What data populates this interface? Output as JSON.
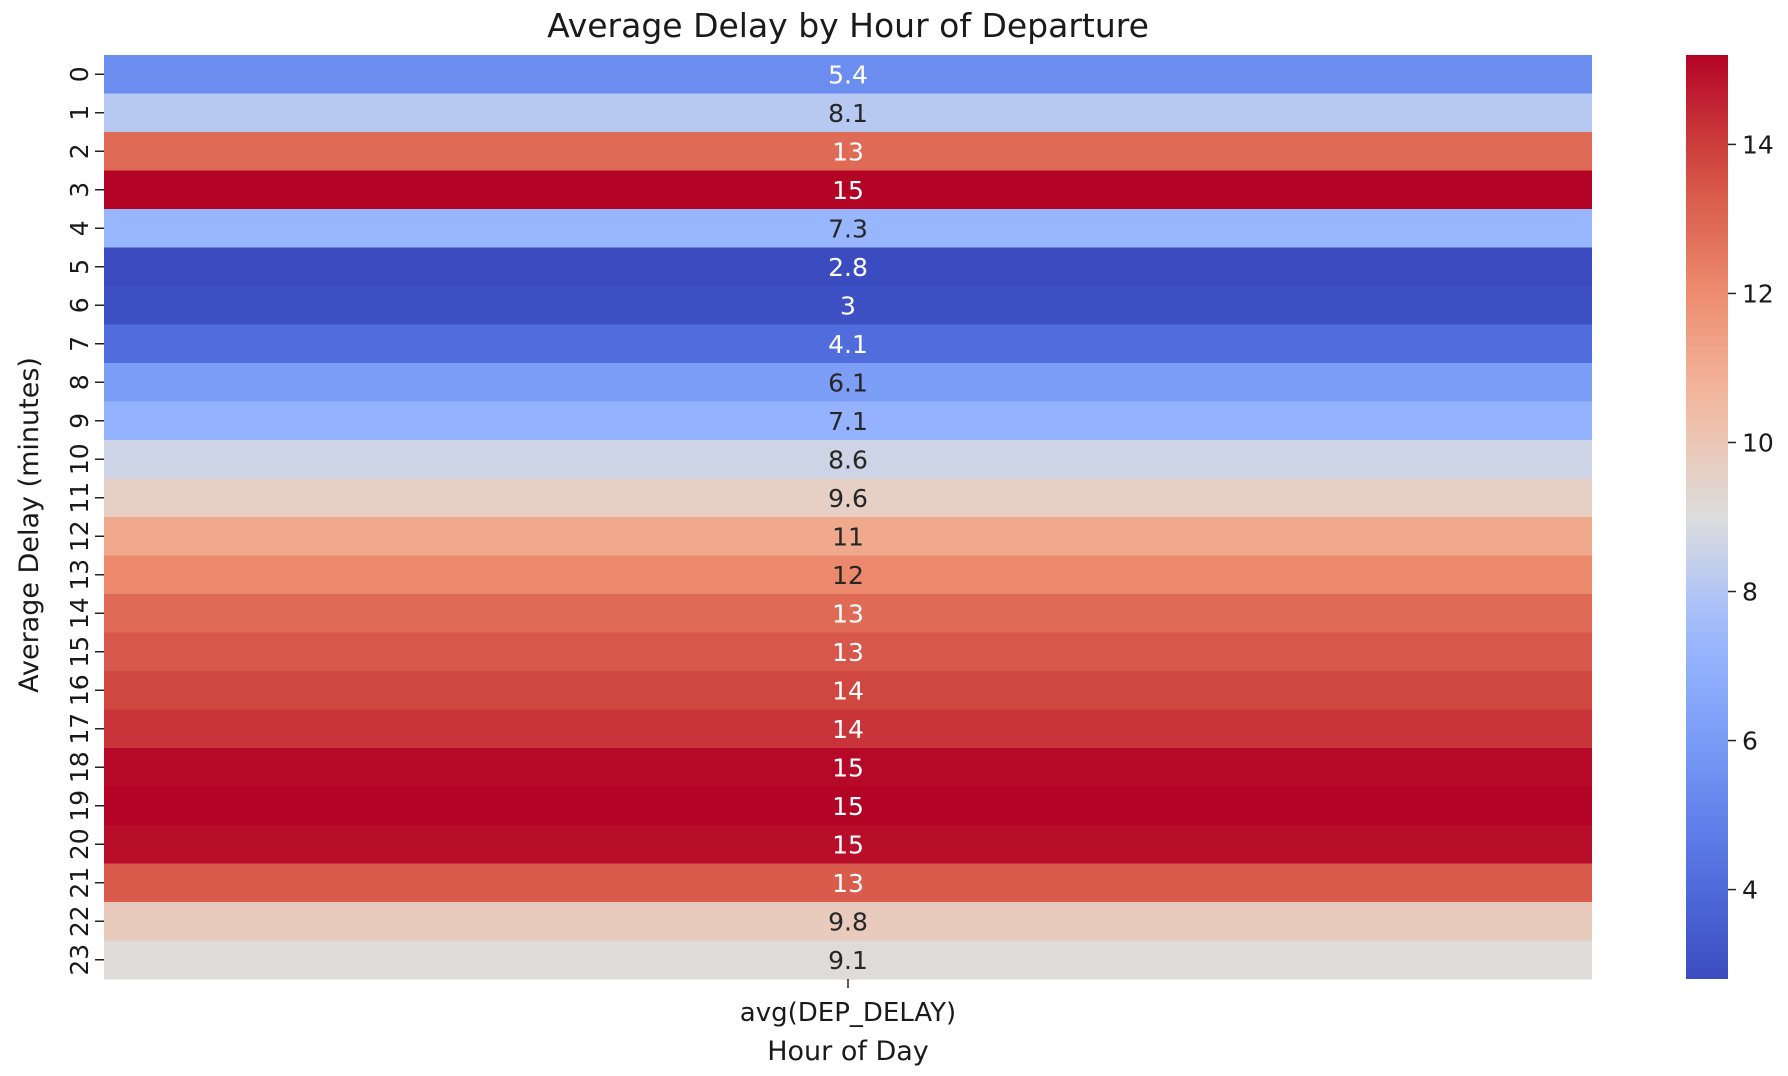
{
  "chart_data": {
    "type": "heatmap",
    "title": "Average Delay by Hour of Departure",
    "xlabel": "Hour of Day",
    "ylabel": "Average Delay (minutes)",
    "columns": [
      "avg(DEP_DELAY)"
    ],
    "rows": [
      "0",
      "1",
      "2",
      "3",
      "4",
      "5",
      "6",
      "7",
      "8",
      "9",
      "10",
      "11",
      "12",
      "13",
      "14",
      "15",
      "16",
      "17",
      "18",
      "19",
      "20",
      "21",
      "22",
      "23"
    ],
    "values": [
      5.4,
      8.1,
      12.9,
      15.2,
      7.3,
      2.8,
      3.0,
      4.1,
      6.1,
      7.1,
      8.6,
      9.6,
      11.1,
      12.1,
      12.9,
      13.4,
      13.8,
      14.2,
      15.1,
      15.2,
      15.0,
      13.3,
      9.8,
      9.1
    ],
    "annotations": [
      "5.4",
      "8.1",
      "13",
      "15",
      "7.3",
      "2.8",
      "3",
      "4.1",
      "6.1",
      "7.1",
      "8.6",
      "9.6",
      "11",
      "12",
      "13",
      "13",
      "14",
      "14",
      "15",
      "15",
      "15",
      "13",
      "9.8",
      "9.1"
    ],
    "colormap": "coolwarm",
    "color_range": [
      2.8,
      15.2
    ],
    "colorbar_ticks": [
      4,
      6,
      8,
      10,
      12,
      14
    ],
    "colorbar_tick_labels": [
      "4",
      "6",
      "8",
      "10",
      "12",
      "14"
    ]
  }
}
